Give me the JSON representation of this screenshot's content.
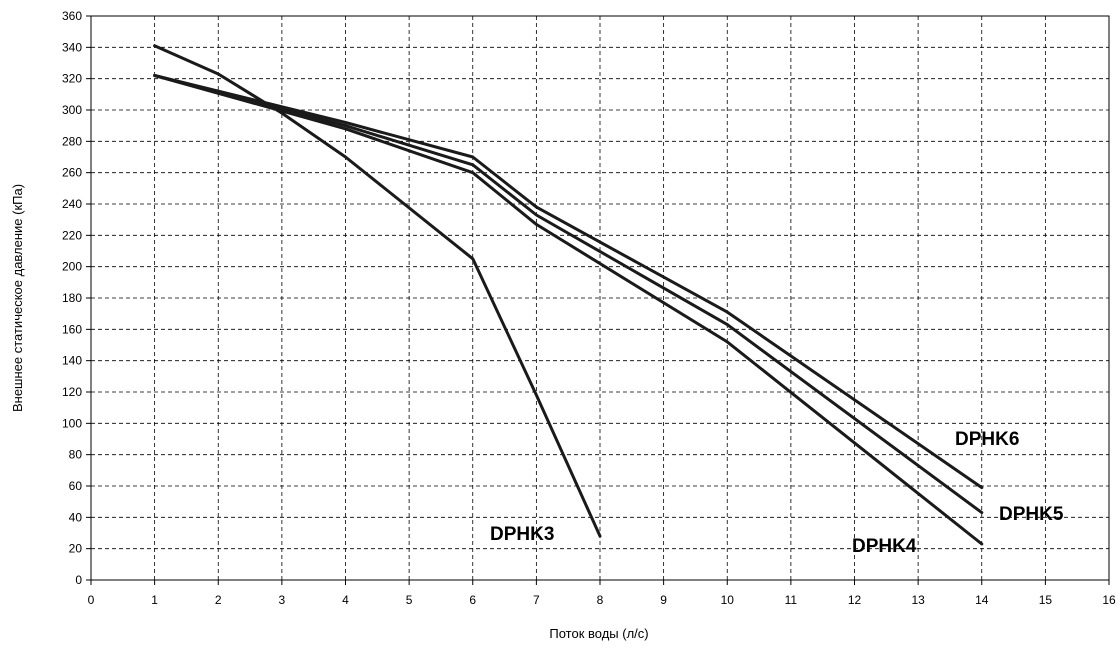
{
  "chart_data": {
    "type": "line",
    "title": "",
    "xlabel": "Поток воды (л/с)",
    "ylabel": "Внешнее статическое давление (кПа)",
    "xlim": [
      0,
      16
    ],
    "ylim": [
      0,
      360
    ],
    "x_ticks": [
      "0",
      "1",
      "2",
      "3",
      "4",
      "5",
      "6",
      "7",
      "8",
      "9",
      "10",
      "11",
      "12",
      "13",
      "14",
      "15",
      "16"
    ],
    "y_ticks": [
      "0",
      "20",
      "40",
      "60",
      "80",
      "100",
      "120",
      "140",
      "160",
      "180",
      "200",
      "220",
      "240",
      "260",
      "280",
      "300",
      "320",
      "340",
      "360"
    ],
    "grid": true,
    "series": [
      {
        "name": "DPHK3",
        "x": [
          1,
          2,
          3,
          4,
          6,
          7,
          8
        ],
        "y": [
          341,
          323,
          298,
          270,
          205,
          118,
          28
        ]
      },
      {
        "name": "DPHK4",
        "x": [
          1,
          4,
          6,
          7,
          10,
          14
        ],
        "y": [
          322,
          288,
          260,
          227,
          152,
          23
        ]
      },
      {
        "name": "DPHK5",
        "x": [
          1,
          4,
          6,
          7,
          10,
          14
        ],
        "y": [
          322,
          290,
          265,
          233,
          163,
          43
        ]
      },
      {
        "name": "DPHK6",
        "x": [
          1,
          4,
          6,
          7,
          10,
          14
        ],
        "y": [
          322,
          292,
          270,
          238,
          171,
          59
        ]
      }
    ]
  }
}
